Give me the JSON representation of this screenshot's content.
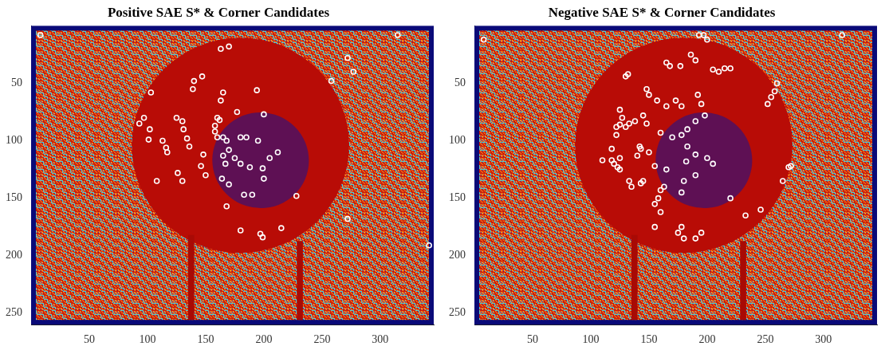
{
  "chart_data": [
    {
      "type": "scatter",
      "title": "Positive SAE S* & Corner Candidates",
      "x": [
        8,
        163,
        170,
        315,
        272,
        277,
        258,
        342,
        272,
        140,
        147,
        139,
        165,
        163,
        194,
        177,
        200,
        103,
        97,
        93,
        102,
        101,
        113,
        116,
        117,
        125,
        130,
        131,
        134,
        136,
        160,
        162,
        158,
        158,
        160,
        165,
        168,
        170,
        180,
        185,
        195,
        148,
        165,
        175,
        180,
        188,
        199,
        205,
        212,
        146,
        150,
        167,
        164,
        170,
        200,
        228,
        126,
        130,
        108,
        168,
        183,
        190,
        180,
        197,
        199,
        215
      ],
      "values": [
        8,
        20,
        18,
        8,
        28,
        40,
        48,
        191,
        168,
        48,
        44,
        55,
        58,
        65,
        56,
        75,
        77,
        58,
        80,
        85,
        90,
        99,
        100,
        106,
        110,
        80,
        83,
        90,
        98,
        105,
        80,
        82,
        87,
        92,
        97,
        97,
        100,
        108,
        97,
        97,
        100,
        112,
        113,
        115,
        120,
        123,
        124,
        115,
        110,
        122,
        130,
        120,
        133,
        138,
        133,
        148,
        128,
        135,
        135,
        157,
        147,
        147,
        178,
        181,
        184,
        176
      ],
      "color": "#ffffff",
      "marker": "circle",
      "xlim": [
        0,
        346
      ],
      "ylim": [
        0,
        260
      ],
      "xticks": [
        50,
        100,
        150,
        200,
        250,
        300
      ],
      "yticks": [
        50,
        100,
        150,
        200,
        250
      ],
      "grid": false
    },
    {
      "type": "scatter",
      "title": "Negative SAE S* & Corner Candidates",
      "x": [
        8,
        316,
        193,
        197,
        200,
        186,
        190,
        205,
        210,
        215,
        220,
        177,
        168,
        165,
        260,
        258,
        255,
        252,
        132,
        130,
        148,
        150,
        157,
        165,
        173,
        178,
        192,
        195,
        198,
        190,
        183,
        125,
        127,
        125,
        122,
        130,
        133,
        138,
        145,
        148,
        160,
        170,
        178,
        183,
        122,
        118,
        125,
        118,
        120,
        123,
        125,
        140,
        143,
        142,
        150,
        155,
        165,
        182,
        190,
        200,
        205,
        190,
        180,
        178,
        163,
        160,
        145,
        143,
        135,
        133,
        110,
        158,
        155,
        160,
        155,
        178,
        175,
        180,
        190,
        195,
        220,
        246,
        233,
        272,
        270,
        265
      ],
      "values": [
        12,
        8,
        8,
        8,
        12,
        25,
        30,
        38,
        40,
        37,
        37,
        35,
        35,
        32,
        50,
        57,
        62,
        68,
        42,
        44,
        55,
        60,
        65,
        70,
        65,
        70,
        60,
        68,
        78,
        83,
        90,
        73,
        80,
        86,
        88,
        88,
        85,
        83,
        78,
        85,
        93,
        97,
        95,
        105,
        95,
        107,
        115,
        117,
        120,
        123,
        125,
        113,
        107,
        105,
        110,
        122,
        125,
        118,
        112,
        115,
        120,
        130,
        135,
        145,
        140,
        143,
        135,
        137,
        140,
        135,
        117,
        150,
        155,
        162,
        175,
        175,
        180,
        185,
        185,
        180,
        150,
        160,
        165,
        122,
        123,
        135
      ],
      "color": "#ffffff",
      "marker": "circle",
      "xlim": [
        0,
        346
      ],
      "ylim": [
        0,
        260
      ],
      "xticks": [
        50,
        100,
        150,
        200,
        250,
        300
      ],
      "yticks": [
        50,
        100,
        150,
        200,
        250
      ],
      "grid": false
    }
  ]
}
